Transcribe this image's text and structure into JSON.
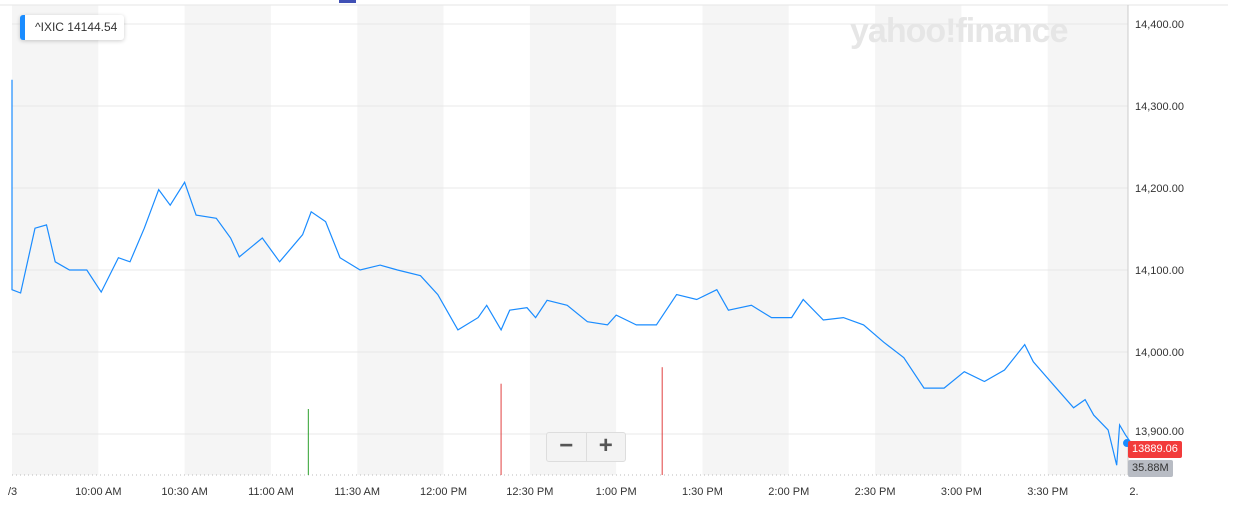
{
  "ticker": {
    "label": "^IXIC 14144.54",
    "color": "#1a8cff"
  },
  "logo": "yahoo!finance",
  "price_badge": "13889.06",
  "volume_badge": "35.88M",
  "zoom": {
    "out": "−",
    "in": "+"
  },
  "chart_data": {
    "type": "line",
    "ylim": [
      13850,
      14430
    ],
    "y_ticks": [
      "14,400.00",
      "14,300.00",
      "14,200.00",
      "14,100.00",
      "14,000.00",
      "13,900.00"
    ],
    "y_tick_values": [
      14400,
      14300,
      14200,
      14100,
      14000,
      13900
    ],
    "x_ticks": [
      "/3",
      "10:00 AM",
      "10:30 AM",
      "11:00 AM",
      "11:30 AM",
      "12:00 PM",
      "12:30 PM",
      "1:00 PM",
      "1:30 PM",
      "2:00 PM",
      "2:30 PM",
      "3:00 PM",
      "3:30 PM",
      "2."
    ],
    "x_tick_times": [
      "09:30",
      "10:00",
      "10:30",
      "11:00",
      "11:30",
      "12:00",
      "12:30",
      "13:00",
      "13:30",
      "14:00",
      "14:30",
      "15:00",
      "15:30",
      "16:00"
    ],
    "xlim": [
      "09:30",
      "16:00"
    ],
    "grid": true,
    "line_color": "#1a8cff",
    "series": [
      {
        "x": [
          "09:30",
          "09:30",
          "09:33",
          "09:38",
          "09:42",
          "09:45",
          "09:50",
          "09:56",
          "10:01",
          "10:07",
          "10:11",
          "10:16",
          "10:21",
          "10:25",
          "10:30",
          "10:34",
          "10:41",
          "10:46",
          "10:49",
          "10:57",
          "11:03",
          "11:11",
          "11:14",
          "11:19",
          "11:24",
          "11:31",
          "11:38",
          "11:44",
          "11:52",
          "11:58",
          "12:05",
          "12:12",
          "12:15",
          "12:20",
          "12:23",
          "12:29",
          "12:32",
          "12:36",
          "12:43",
          "12:50",
          "12:57",
          "13:00",
          "13:07",
          "13:14",
          "13:21",
          "13:28",
          "13:35",
          "13:39",
          "13:47",
          "13:54",
          "14:01",
          "14:05",
          "14:12",
          "14:19",
          "14:26",
          "14:33",
          "14:40",
          "14:47",
          "14:54",
          "15:01",
          "15:08",
          "15:15",
          "15:22",
          "15:25",
          "15:32",
          "15:39",
          "15:43",
          "15:46",
          "15:51",
          "15:54",
          "15:55",
          "15:57",
          "15:59"
        ],
        "values": [
          14332,
          14076,
          14072,
          14151,
          14155,
          14110,
          14100,
          14100,
          14073,
          14115,
          14110,
          14151,
          14198,
          14179,
          14207,
          14167,
          14163,
          14139,
          14116,
          14139,
          14110,
          14143,
          14171,
          14159,
          14115,
          14100,
          14106,
          14100,
          14093,
          14070,
          14027,
          14042,
          14057,
          14027,
          14051,
          14054,
          14042,
          14063,
          14057,
          14037,
          14033,
          14045,
          14033,
          14033,
          14070,
          14064,
          14076,
          14051,
          14057,
          14042,
          14042,
          14064,
          14039,
          14042,
          14033,
          14012,
          13993,
          13956,
          13956,
          13976,
          13964,
          13978,
          14009,
          13988,
          13960,
          13932,
          13942,
          13923,
          13905,
          13862,
          13911,
          13899,
          13889
        ]
      }
    ],
    "volume_bars": [
      {
        "x": "11:13",
        "level": 0.6,
        "color": "#2ca02c"
      },
      {
        "x": "12:20",
        "level": 0.83,
        "color": "#e04040"
      },
      {
        "x": "13:16",
        "level": 0.98,
        "color": "#e04040"
      }
    ]
  }
}
